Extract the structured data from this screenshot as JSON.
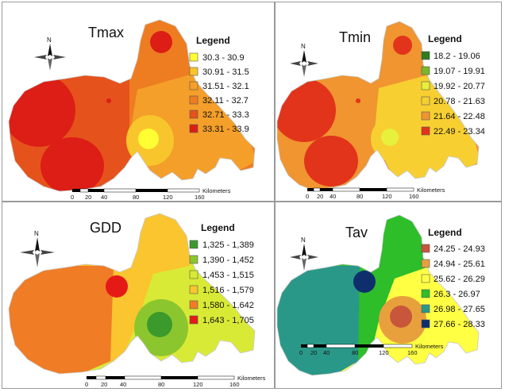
{
  "panels": [
    {
      "title": "Tmax",
      "legend_title": "Legend",
      "classes": [
        {
          "label": "30.3 - 30.9",
          "color": "#ffff33"
        },
        {
          "label": "30.91 - 31.5",
          "color": "#f9c52c"
        },
        {
          "label": "31.51 - 32.1",
          "color": "#f49f2a"
        },
        {
          "label": "32.11 - 32.7",
          "color": "#ee7d22"
        },
        {
          "label": "32.71 - 33.3",
          "color": "#e6521c"
        },
        {
          "label": "33.31 - 33.9",
          "color": "#dc1e16"
        }
      ],
      "scale": {
        "ticks": [
          "0",
          "20",
          "40",
          "80",
          "120",
          "160"
        ],
        "unit": "Kilometers"
      },
      "north": "N"
    },
    {
      "title": "Tmin",
      "legend_title": "Legend",
      "classes": [
        {
          "label": "18.2 - 19.06",
          "color": "#2e7d1e"
        },
        {
          "label": "19.07 - 19.91",
          "color": "#7ab82b"
        },
        {
          "label": "19.92 - 20.77",
          "color": "#e7f03a"
        },
        {
          "label": "20.78 - 21.63",
          "color": "#f7cf31"
        },
        {
          "label": "21.64 - 22.48",
          "color": "#f09530"
        },
        {
          "label": "22.49 - 23.34",
          "color": "#e2341b"
        }
      ],
      "scale": {
        "ticks": [
          "0",
          "20",
          "40",
          "80",
          "120",
          "160"
        ],
        "unit": "Kilometers"
      },
      "north": "N"
    },
    {
      "title": "GDD",
      "legend_title": "Legend",
      "classes": [
        {
          "label": "1,325 - 1,389",
          "color": "#3b9a2b"
        },
        {
          "label": "1,390 - 1,452",
          "color": "#8cc62e"
        },
        {
          "label": "1,453 - 1,515",
          "color": "#d9ea36"
        },
        {
          "label": "1,516 - 1,579",
          "color": "#fac52f"
        },
        {
          "label": "1,580 - 1,642",
          "color": "#f07c26"
        },
        {
          "label": "1,643 - 1,705",
          "color": "#e51a17"
        }
      ],
      "scale": {
        "ticks": [
          "0",
          "20",
          "40",
          "80",
          "120",
          "160"
        ],
        "unit": "Kilometers"
      },
      "north": "N"
    },
    {
      "title": "Tav",
      "legend_title": "Legend",
      "classes": [
        {
          "label": "24.25 - 24.93",
          "color": "#c8563a"
        },
        {
          "label": "24.94 - 25.61",
          "color": "#e8a03c"
        },
        {
          "label": "25.62 - 26.29",
          "color": "#ffff44"
        },
        {
          "label": "26.3 - 26.97",
          "color": "#2dbe2a"
        },
        {
          "label": "26.98 - 27.65",
          "color": "#2a9888"
        },
        {
          "label": "27.66 - 28.33",
          "color": "#0e2f6c"
        }
      ],
      "scale": {
        "ticks": [
          "0",
          "20",
          "40",
          "80",
          "120",
          "160"
        ],
        "unit": "Kilometers"
      },
      "north": "N"
    }
  ]
}
